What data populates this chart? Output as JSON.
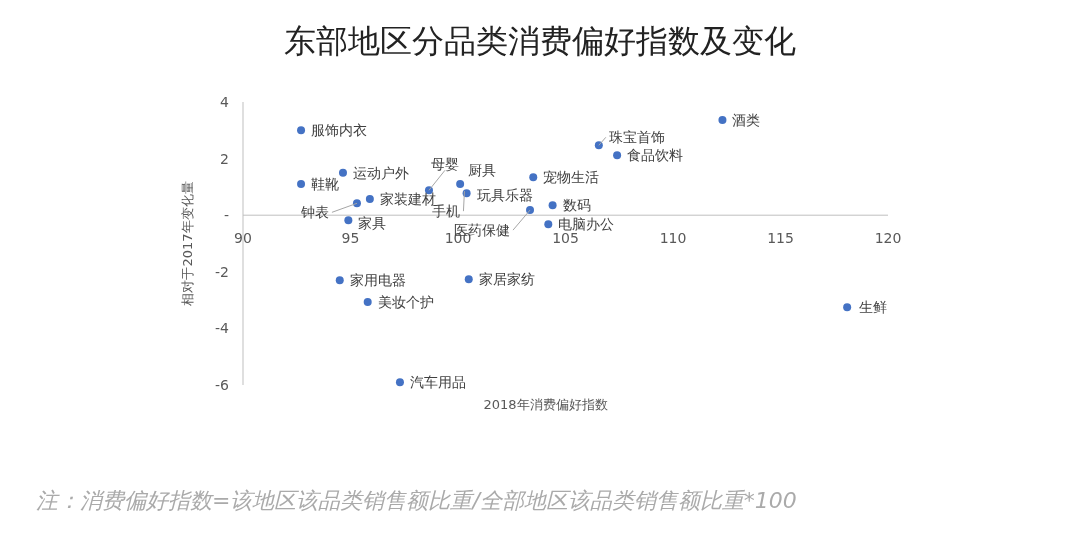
{
  "chart_data": {
    "type": "scatter",
    "title": "东部地区分品类消费偏好指数及变化",
    "xlabel": "2018年消费偏好指数",
    "ylabel": "相对于2017年变化量",
    "series": [
      {
        "color": "#4472c4",
        "x": [
          92.7,
          92.7,
          94.65,
          95.3,
          95.9,
          94.9,
          98.65,
          100.1,
          100.4,
          null,
          103.5,
          103.35,
          104.4,
          104.2,
          106.55,
          107.4,
          112.3,
          118.1,
          94.5,
          100.5,
          95.8,
          97.3
        ],
        "values": [
          3.0,
          1.1,
          1.5,
          0.42,
          0.57,
          -0.18,
          0.88,
          1.1,
          0.78,
          null,
          1.34,
          0.18,
          0.35,
          -0.32,
          2.47,
          2.12,
          3.36,
          -3.25,
          -2.3,
          -2.26,
          -3.07,
          -5.9
        ]
      }
    ],
    "annotations": [
      {
        "text": "服饰内衣",
        "x": 92.7,
        "y": 3.0
      },
      {
        "text": "鞋靴",
        "x": 92.7,
        "y": 1.1
      },
      {
        "text": "运动户外",
        "x": 94.65,
        "y": 1.5
      },
      {
        "text": "钟表",
        "x": 95.3,
        "y": 0.42
      },
      {
        "text": "家装建材",
        "x": 95.9,
        "y": 0.57
      },
      {
        "text": "家具",
        "x": 94.9,
        "y": -0.18
      },
      {
        "text": "母婴",
        "x": 98.65,
        "y": 0.88
      },
      {
        "text": "厨具",
        "x": 100.1,
        "y": 1.1
      },
      {
        "text": "玩具乐器",
        "x": 100.4,
        "y": 0.78
      },
      {
        "text": "手机",
        "x": 100.3,
        "y": 0.85
      },
      {
        "text": "宠物生活",
        "x": 103.5,
        "y": 1.34
      },
      {
        "text": "医药保健",
        "x": 103.35,
        "y": 0.18
      },
      {
        "text": "数码",
        "x": 104.4,
        "y": 0.35
      },
      {
        "text": "电脑办公",
        "x": 104.2,
        "y": -0.32
      },
      {
        "text": "珠宝首饰",
        "x": 106.55,
        "y": 2.47
      },
      {
        "text": "食品饮料",
        "x": 107.4,
        "y": 2.12
      },
      {
        "text": "酒类",
        "x": 112.3,
        "y": 3.36
      },
      {
        "text": "生鲜",
        "x": 118.1,
        "y": -3.25
      },
      {
        "text": "家用电器",
        "x": 94.5,
        "y": -2.3
      },
      {
        "text": "家居家纺",
        "x": 100.5,
        "y": -2.26
      },
      {
        "text": "美妆个护",
        "x": 95.8,
        "y": -3.07
      },
      {
        "text": "汽车用品",
        "x": 97.3,
        "y": -5.9
      },
      "注：消费偏好指数=该地区该品类销售额比重/全部地区该品类销售额比重*100"
    ],
    "xlim": [
      90,
      120
    ],
    "xticks": [
      90,
      95,
      100,
      105,
      110,
      115,
      120
    ],
    "ylim": [
      -6,
      4
    ],
    "yticks": [
      -6,
      -4,
      -2,
      {
        "value": 0,
        "label": "-"
      },
      2,
      4
    ],
    "marker": "circle",
    "grid": false
  }
}
